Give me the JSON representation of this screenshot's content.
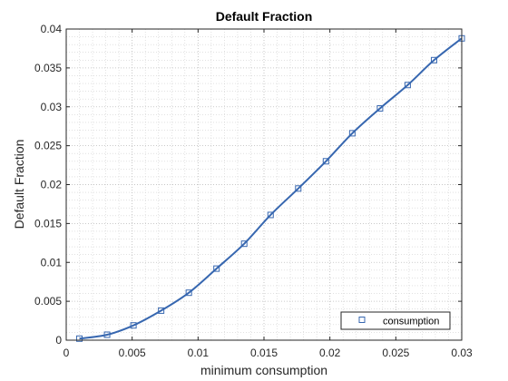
{
  "chart_data": {
    "type": "line",
    "title": "Default Fraction",
    "xlabel": "minimum consumption",
    "ylabel": "Default Fraction",
    "xlim": [
      0,
      0.03
    ],
    "ylim": [
      0,
      0.04
    ],
    "xticks": [
      "0",
      "0.005",
      "0.01",
      "0.015",
      "0.02",
      "0.025",
      "0.03"
    ],
    "yticks": [
      "0",
      "0.005",
      "0.01",
      "0.015",
      "0.02",
      "0.025",
      "0.03",
      "0.035",
      "0.04"
    ],
    "grid": "on (major and minor, dotted)",
    "legend_placement": "bottom-right",
    "series": [
      {
        "name": "consumption",
        "marker": "square",
        "color": "#3767b0",
        "x": [
          0.001,
          0.0031,
          0.0051,
          0.0072,
          0.0093,
          0.0114,
          0.0135,
          0.0155,
          0.0176,
          0.0197,
          0.0217,
          0.0238,
          0.0259,
          0.0279,
          0.03
        ],
        "y": [
          0.0002,
          0.0007,
          0.0019,
          0.0038,
          0.0061,
          0.0092,
          0.0124,
          0.0161,
          0.0195,
          0.023,
          0.0266,
          0.0298,
          0.0328,
          0.036,
          0.0388
        ]
      }
    ]
  }
}
